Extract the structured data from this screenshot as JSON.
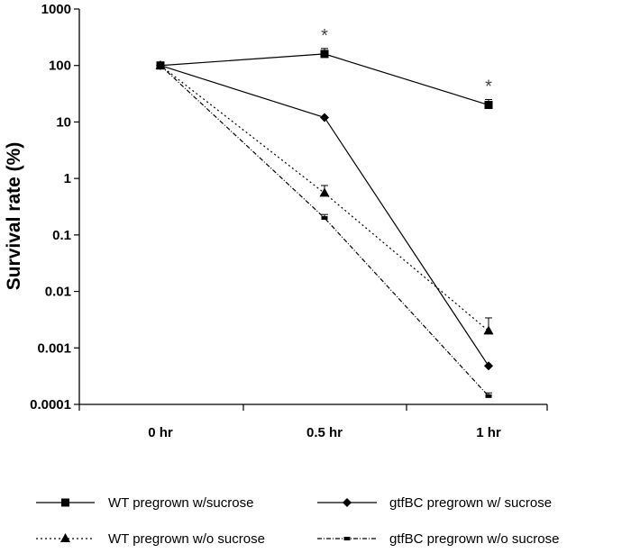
{
  "chart_data": {
    "type": "line",
    "title": "",
    "xlabel": "",
    "ylabel": "Survival rate (%)",
    "yscale": "log",
    "ylim": [
      0.0001,
      1000
    ],
    "categories": [
      "0 hr",
      "0.5 hr",
      "1 hr"
    ],
    "yticks": [
      "1000",
      "100",
      "10",
      "1",
      "0.1",
      "0.01",
      "0.001",
      "0.0001"
    ],
    "series": [
      {
        "name": "WT pregrown w/sucrose",
        "line": "solid",
        "marker": "square",
        "values": [
          100,
          160,
          20
        ],
        "error_upper": [
          null,
          200,
          25
        ]
      },
      {
        "name": "gtfBC pregrown w/ sucrose",
        "line": "solid",
        "marker": "diamond",
        "values": [
          100,
          12,
          0.00048
        ],
        "error_upper": [
          null,
          null,
          null
        ]
      },
      {
        "name": "WT pregrown w/o sucrose",
        "line": "dotted",
        "marker": "triangle",
        "values": [
          100,
          0.55,
          0.002
        ],
        "error_upper": [
          null,
          0.75,
          0.0034
        ]
      },
      {
        "name": "gtfBC pregrown w/o sucrose",
        "line": "dashdot",
        "marker": "small-square",
        "values": [
          100,
          0.2,
          0.00014
        ],
        "error_upper": [
          null,
          0.23,
          0.00016
        ]
      }
    ],
    "annotations": [
      {
        "text": "*",
        "category": "0.5 hr"
      },
      {
        "text": "*",
        "category": "1 hr"
      }
    ]
  }
}
